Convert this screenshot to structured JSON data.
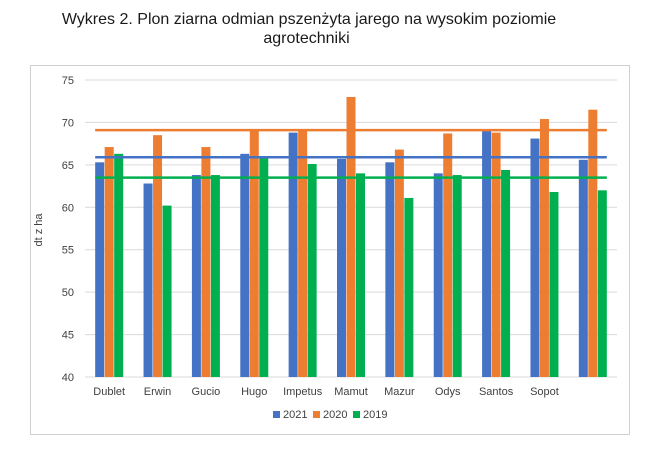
{
  "title_line1": "Wykres 2. Plon ziarna odmian pszenżyta jarego na wysokim poziomie",
  "title_line2": "agrotechniki",
  "chart_data": {
    "type": "bar",
    "ylabel": "dt z ha",
    "ylim": [
      40,
      75
    ],
    "yticks": [
      40,
      45,
      50,
      55,
      60,
      65,
      70,
      75
    ],
    "grid": true,
    "legend_position": "bottom",
    "categories": [
      "Dublet",
      "Erwin",
      "Gucio",
      "Hugo",
      "Impetus",
      "Mamut",
      "Mazur",
      "Odys",
      "Santos",
      "Sopot",
      ""
    ],
    "series": [
      {
        "name": "2021",
        "color": "#4472c4",
        "values": [
          65.3,
          62.8,
          63.8,
          66.3,
          68.8,
          65.7,
          65.3,
          64.0,
          69.0,
          68.1,
          65.6
        ],
        "average": 65.9
      },
      {
        "name": "2020",
        "color": "#ed7d31",
        "values": [
          67.1,
          68.5,
          67.1,
          69.1,
          69.0,
          73.0,
          66.8,
          68.7,
          68.8,
          70.4,
          71.5
        ],
        "average": 69.1
      },
      {
        "name": "2019",
        "color": "#00b050",
        "values": [
          66.3,
          60.2,
          63.8,
          65.9,
          65.1,
          64.0,
          61.1,
          63.8,
          64.4,
          61.8,
          62.0
        ],
        "average": 63.5
      }
    ]
  }
}
